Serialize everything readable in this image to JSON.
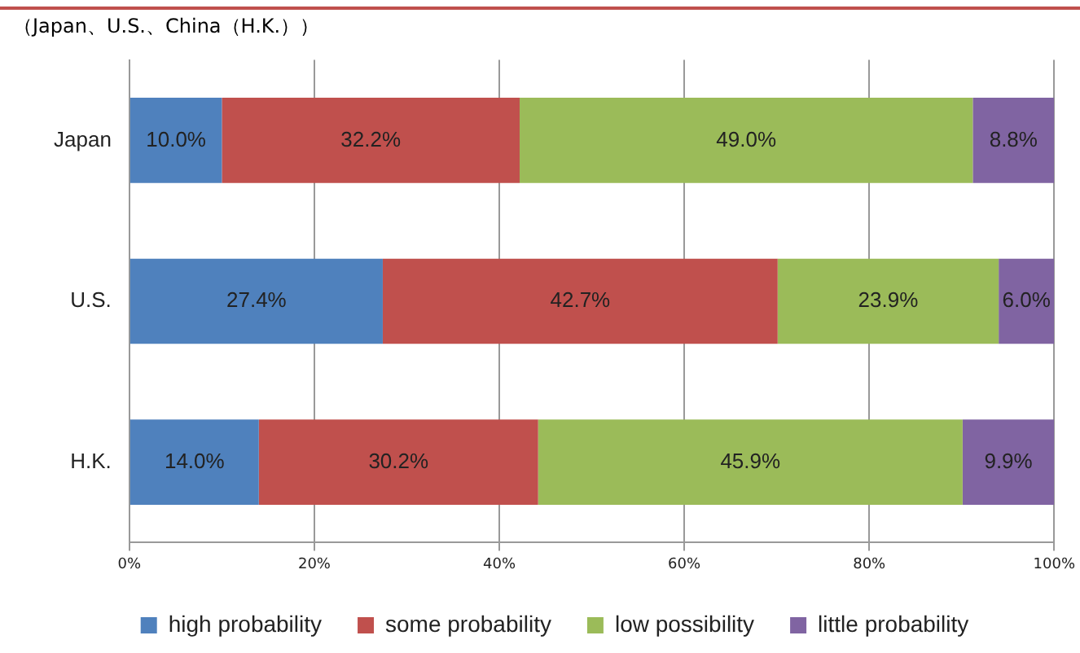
{
  "chart_data": {
    "type": "bar",
    "orientation": "horizontal",
    "stacked": true,
    "subtitle": "（Japan、U.S.、China（H.K.））",
    "categories": [
      "Japan",
      "U.S.",
      "H.K."
    ],
    "series": [
      {
        "name": "high probability",
        "color": "#4f81bd",
        "values": [
          10.0,
          27.4,
          14.0
        ],
        "value_labels": [
          "10.0%",
          "27.4%",
          "14.0%"
        ]
      },
      {
        "name": "some probability",
        "color": "#c0504d",
        "values": [
          32.2,
          42.7,
          30.2
        ],
        "value_labels": [
          "32.2%",
          "42.7%",
          "30.2%"
        ]
      },
      {
        "name": "low possibility",
        "color": "#9bbb59",
        "values": [
          49.0,
          23.9,
          45.9
        ],
        "value_labels": [
          "49.0%",
          "23.9%",
          "45.9%"
        ]
      },
      {
        "name": "little probability",
        "color": "#8064a2",
        "values": [
          8.8,
          6.0,
          9.9
        ],
        "value_labels": [
          "8.8%",
          "6.0%",
          "9.9%"
        ]
      }
    ],
    "xlim": [
      0,
      100
    ],
    "xticks": [
      {
        "value": 0,
        "label": "0%"
      },
      {
        "value": 20,
        "label": "20%"
      },
      {
        "value": 40,
        "label": "40%"
      },
      {
        "value": 60,
        "label": "60%"
      },
      {
        "value": 80,
        "label": "80%"
      },
      {
        "value": 100,
        "label": "100%"
      }
    ],
    "grid": "x",
    "legend": "bottom"
  }
}
